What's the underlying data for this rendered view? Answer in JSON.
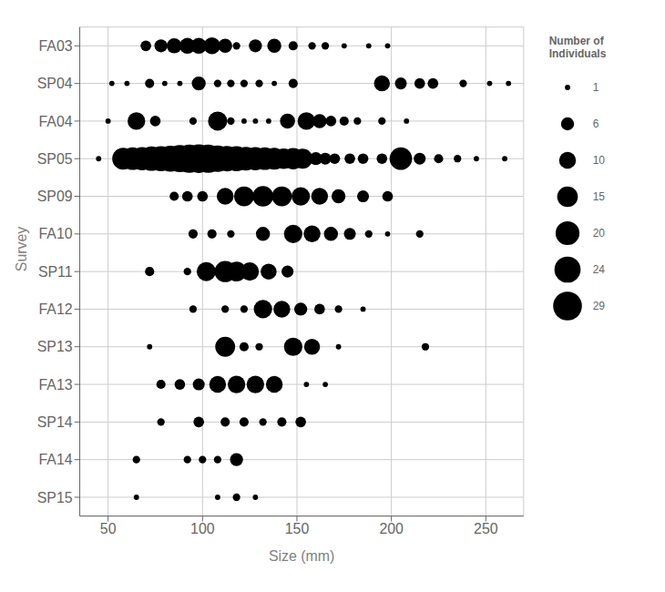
{
  "chart_data": {
    "type": "scatter",
    "xlabel": "Size (mm)",
    "ylabel": "Survey",
    "categories": [
      "FA03",
      "SP04",
      "FA04",
      "SP05",
      "SP09",
      "FA10",
      "SP11",
      "FA12",
      "SP13",
      "FA13",
      "SP14",
      "FA14",
      "SP15"
    ],
    "xlim": [
      35,
      270
    ],
    "xticks": [
      50,
      100,
      150,
      200,
      250
    ],
    "grid": true,
    "color": "#000000",
    "marker": "circle",
    "legend": "right",
    "legend_title": "Number of\nIndividuals",
    "legend_sizes": [
      1,
      6,
      10,
      15,
      20,
      24,
      29
    ],
    "rows": [
      {
        "category": "FA03",
        "x": [
          70,
          78,
          85,
          92,
          98,
          105,
          112,
          118,
          128,
          138,
          148,
          158,
          165,
          175,
          188,
          198
        ],
        "sizes": [
          4,
          6,
          8,
          9,
          9,
          10,
          7,
          2,
          6,
          7,
          3,
          2,
          2,
          1,
          1,
          1
        ]
      },
      {
        "category": "SP04",
        "x": [
          52,
          60,
          72,
          80,
          88,
          98,
          108,
          115,
          122,
          130,
          138,
          148,
          195,
          205,
          215,
          222,
          238,
          252,
          262
        ],
        "sizes": [
          1,
          1,
          3,
          1,
          1,
          7,
          2,
          2,
          2,
          2,
          1,
          3,
          9,
          5,
          4,
          4,
          2,
          1,
          1
        ]
      },
      {
        "category": "FA04",
        "x": [
          50,
          65,
          75,
          95,
          108,
          115,
          122,
          128,
          135,
          145,
          155,
          162,
          168,
          175,
          182,
          195,
          208
        ],
        "sizes": [
          1,
          11,
          4,
          2,
          13,
          2,
          1,
          1,
          1,
          8,
          11,
          7,
          4,
          3,
          2,
          2,
          1
        ]
      },
      {
        "category": "SP05",
        "x": [
          45,
          58,
          63,
          68,
          73,
          78,
          83,
          88,
          93,
          98,
          103,
          108,
          113,
          118,
          123,
          128,
          133,
          138,
          143,
          148,
          153,
          160,
          165,
          170,
          178,
          185,
          195,
          205,
          215,
          225,
          235,
          245,
          260
        ],
        "sizes": [
          1,
          17,
          18,
          19,
          21,
          22,
          24,
          26,
          28,
          29,
          28,
          25,
          23,
          22,
          20,
          19,
          18,
          17,
          15,
          16,
          14,
          6,
          5,
          4,
          4,
          4,
          4,
          18,
          5,
          3,
          2,
          1,
          1
        ]
      },
      {
        "category": "SP09",
        "x": [
          85,
          92,
          100,
          112,
          122,
          132,
          142,
          152,
          162,
          172,
          185,
          198
        ],
        "sizes": [
          3,
          4,
          4,
          10,
          14,
          15,
          14,
          12,
          10,
          7,
          5,
          4
        ]
      },
      {
        "category": "FA10",
        "x": [
          95,
          105,
          115,
          132,
          148,
          158,
          168,
          178,
          188,
          198,
          215
        ],
        "sizes": [
          3,
          3,
          2,
          7,
          12,
          10,
          7,
          5,
          2,
          1,
          2
        ]
      },
      {
        "category": "SP11",
        "x": [
          72,
          92,
          102,
          112,
          118,
          125,
          135,
          145
        ],
        "sizes": [
          3,
          2,
          13,
          16,
          14,
          12,
          9,
          5
        ]
      },
      {
        "category": "FA12",
        "x": [
          95,
          112,
          122,
          132,
          142,
          152,
          162,
          172,
          185
        ],
        "sizes": [
          2,
          2,
          2,
          12,
          10,
          6,
          4,
          2,
          1
        ]
      },
      {
        "category": "SP13",
        "x": [
          72,
          112,
          122,
          130,
          148,
          158,
          172,
          218
        ],
        "sizes": [
          1,
          14,
          3,
          2,
          12,
          9,
          1,
          2
        ]
      },
      {
        "category": "FA13",
        "x": [
          78,
          88,
          98,
          108,
          118,
          128,
          138,
          155,
          165
        ],
        "sizes": [
          3,
          4,
          5,
          10,
          11,
          11,
          10,
          1,
          1
        ]
      },
      {
        "category": "SP14",
        "x": [
          78,
          98,
          112,
          122,
          132,
          142,
          152
        ],
        "sizes": [
          2,
          4,
          3,
          3,
          2,
          3,
          4
        ]
      },
      {
        "category": "FA14",
        "x": [
          65,
          92,
          100,
          108,
          118
        ],
        "sizes": [
          2,
          2,
          2,
          2,
          6
        ]
      },
      {
        "category": "SP15",
        "x": [
          65,
          108,
          118,
          128
        ],
        "sizes": [
          1,
          1,
          2,
          1
        ]
      }
    ]
  }
}
